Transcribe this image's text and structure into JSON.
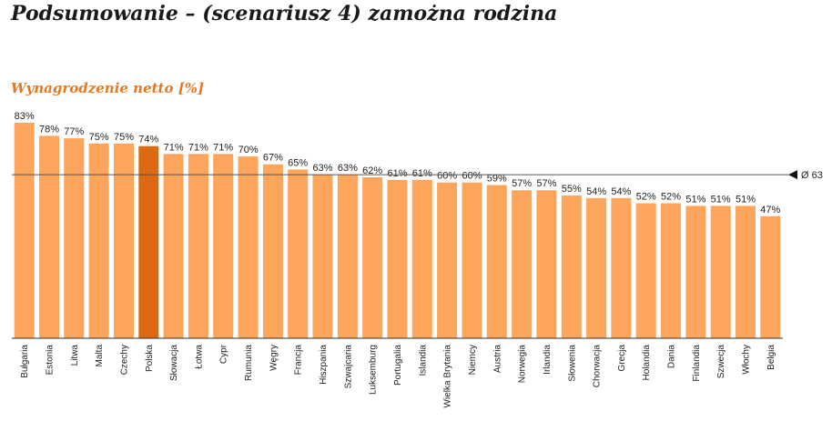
{
  "header": {
    "title": "Podsumowanie – (scenariusz 4) zamożna rodzina"
  },
  "chart_data": {
    "type": "bar",
    "title": "Wynagrodzenie netto [%]",
    "categories": [
      "Bułgaria",
      "Estonia",
      "Litwa",
      "Malta",
      "Czechy",
      "Polska",
      "Słowacja",
      "Łotwa",
      "Cypr",
      "Rumunia",
      "Węgry",
      "Francja",
      "Hiszpania",
      "Szwajcaria",
      "Luksemburg",
      "Portugalia",
      "Islandia",
      "Wielka Brytania",
      "Niemcy",
      "Austria",
      "Norwegia",
      "Irlandia",
      "Słowenia",
      "Chorwacja",
      "Grecja",
      "Holandia",
      "Dania",
      "Finlandia",
      "Szwecja",
      "Włochy",
      "Belgia"
    ],
    "values": [
      83,
      78,
      77,
      75,
      75,
      74,
      71,
      71,
      71,
      70,
      67,
      65,
      63,
      63,
      62,
      61,
      61,
      60,
      60,
      59,
      57,
      57,
      55,
      54,
      54,
      52,
      52,
      51,
      51,
      51,
      47
    ],
    "value_labels": [
      "83%",
      "78%",
      "77%",
      "75%",
      "75%",
      "74%",
      "71%",
      "71%",
      "71%",
      "70%",
      "67%",
      "65%",
      "63%",
      "63%",
      "62%",
      "61%",
      "61%",
      "60%",
      "60%",
      "59%",
      "57%",
      "57%",
      "55%",
      "54%",
      "54%",
      "52%",
      "52%",
      "51%",
      "51%",
      "51%",
      "47%"
    ],
    "highlight": "Polska",
    "average": 63,
    "average_label": "Ø 63",
    "ylim": [
      0,
      83
    ],
    "colors": {
      "bar": "#fda55a",
      "highlight": "#dd6a12",
      "average_line": "#555555"
    }
  }
}
